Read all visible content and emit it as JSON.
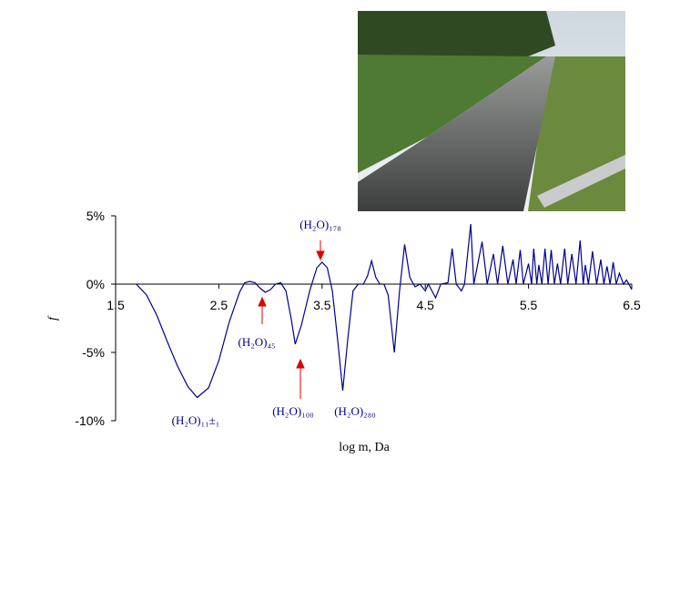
{
  "chart_data": {
    "type": "line",
    "y_label": "f",
    "x_label": "log m, Da",
    "xlim": [
      1.5,
      6.5
    ],
    "xticks": [
      1.5,
      2.5,
      3.5,
      4.5,
      5.5,
      6.5
    ],
    "ylim": [
      -10,
      5
    ],
    "yticks": [
      {
        "value": 5,
        "label": "5%"
      },
      {
        "value": 0,
        "label": "0%"
      },
      {
        "value": -5,
        "label": "-5%"
      },
      {
        "value": -10,
        "label": "-10%"
      }
    ],
    "annotations": [
      "(H₂O)₁₁±₁",
      "(H₂O)₄₅",
      "(H₂O)₁₀₀",
      "(H₂O)₂₈₀",
      "(H₂O)₁₇₈"
    ],
    "series": [
      {
        "color": "#00008b",
        "x": [
          1.7,
          1.8,
          1.9,
          2.0,
          2.1,
          2.2,
          2.29,
          2.4,
          2.5,
          2.6,
          2.7,
          2.75,
          2.8,
          2.85,
          2.9,
          2.95,
          3.0,
          3.05,
          3.1,
          3.15,
          3.2,
          3.24,
          3.3,
          3.38,
          3.45,
          3.5,
          3.55,
          3.6,
          3.65,
          3.7,
          3.75,
          3.8,
          3.85,
          3.9,
          3.94,
          3.98,
          4.02,
          4.06,
          4.1,
          4.14,
          4.2,
          4.25,
          4.3,
          4.35,
          4.4,
          4.45,
          4.5,
          4.53,
          4.6,
          4.65,
          4.72,
          4.76,
          4.8,
          4.85,
          4.88,
          4.94,
          4.97,
          5.05,
          5.1,
          5.16,
          5.2,
          5.25,
          5.3,
          5.35,
          5.38,
          5.42,
          5.45,
          5.5,
          5.53,
          5.55,
          5.58,
          5.6,
          5.63,
          5.66,
          5.69,
          5.72,
          5.75,
          5.78,
          5.81,
          5.85,
          5.88,
          5.92,
          5.96,
          6.0,
          6.03,
          6.05,
          6.08,
          6.12,
          6.16,
          6.2,
          6.23,
          6.26,
          6.29,
          6.32,
          6.35,
          6.38,
          6.42,
          6.45,
          6.5
        ],
        "values": [
          0,
          -0.8,
          -2.3,
          -4.2,
          -6.0,
          -7.5,
          -8.3,
          -7.6,
          -5.6,
          -2.8,
          -0.6,
          0.1,
          0.2,
          0.1,
          -0.3,
          -0.6,
          -0.4,
          0,
          0.1,
          -0.5,
          -2.5,
          -4.4,
          -3.0,
          -0.5,
          1.2,
          1.6,
          1.2,
          -0.5,
          -4,
          -7.8,
          -4,
          -0.5,
          0,
          0,
          0.6,
          1.7,
          0.5,
          0,
          0,
          -0.8,
          -5.0,
          -0.5,
          2.9,
          0.5,
          -0.2,
          0,
          -0.5,
          0,
          -1.0,
          0,
          0.1,
          2.6,
          0,
          -0.5,
          0,
          4.4,
          0,
          3.1,
          0,
          2.2,
          0,
          2.8,
          0,
          1.8,
          0,
          2.5,
          0,
          1.5,
          0,
          2.6,
          0,
          1.4,
          0,
          2.6,
          0,
          2.5,
          0,
          1.5,
          0,
          2.6,
          0,
          2.2,
          0,
          3.2,
          0,
          1.4,
          0,
          2.4,
          0,
          1.8,
          0,
          1.3,
          0,
          1.6,
          0,
          0.8,
          0,
          0.3,
          -0.4
        ]
      }
    ]
  }
}
